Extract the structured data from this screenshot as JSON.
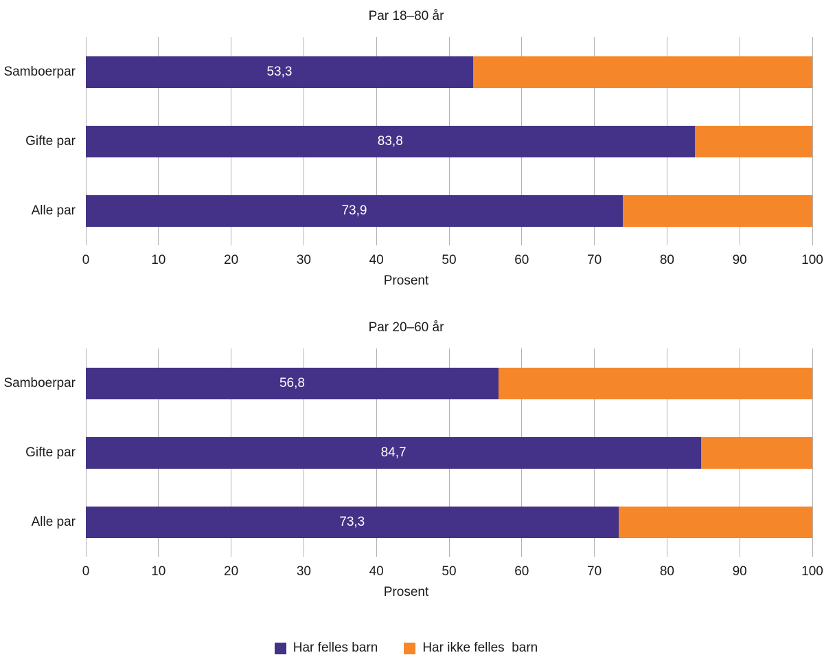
{
  "chart_data": [
    {
      "type": "bar",
      "orientation": "horizontal",
      "stacked": true,
      "title": "Par 18–80 år",
      "categories": [
        "Samboerpar",
        "Gifte par",
        "Alle par"
      ],
      "series": [
        {
          "name": "Har felles barn",
          "color": "#433287",
          "values": [
            53.3,
            83.8,
            73.9
          ],
          "labels": [
            "53,3",
            "83,8",
            "73,9"
          ]
        },
        {
          "name": "Har ikke felles barn",
          "color": "#F6862A",
          "values": [
            46.7,
            16.2,
            26.1
          ],
          "labels": [
            "",
            "",
            ""
          ]
        }
      ],
      "xlabel": "Prosent",
      "xlim": [
        0,
        100
      ],
      "xticks": [
        0,
        10,
        20,
        30,
        40,
        50,
        60,
        70,
        80,
        90,
        100
      ],
      "grid": true,
      "legend_position": "bottom"
    },
    {
      "type": "bar",
      "orientation": "horizontal",
      "stacked": true,
      "title": "Par 20–60 år",
      "categories": [
        "Samboerpar",
        "Gifte par",
        "Alle par"
      ],
      "series": [
        {
          "name": "Har felles barn",
          "color": "#433287",
          "values": [
            56.8,
            84.7,
            73.3
          ],
          "labels": [
            "56,8",
            "84,7",
            "73,3"
          ]
        },
        {
          "name": "Har ikke felles barn",
          "color": "#F6862A",
          "values": [
            43.2,
            15.3,
            26.7
          ],
          "labels": [
            "",
            "",
            ""
          ]
        }
      ],
      "xlabel": "Prosent",
      "xlim": [
        0,
        100
      ],
      "xticks": [
        0,
        10,
        20,
        30,
        40,
        50,
        60,
        70,
        80,
        90,
        100
      ],
      "grid": true,
      "legend_position": "bottom"
    }
  ],
  "legend": {
    "items": [
      {
        "label": "Har felles barn",
        "color": "#433287"
      },
      {
        "label": "Har ikke felles  barn",
        "color": "#F6862A"
      }
    ]
  },
  "colors": {
    "background": "#ffffff",
    "grid": "#b2b2b2",
    "bar_value_text": "#ffffff",
    "text": "#1a1a1a"
  }
}
